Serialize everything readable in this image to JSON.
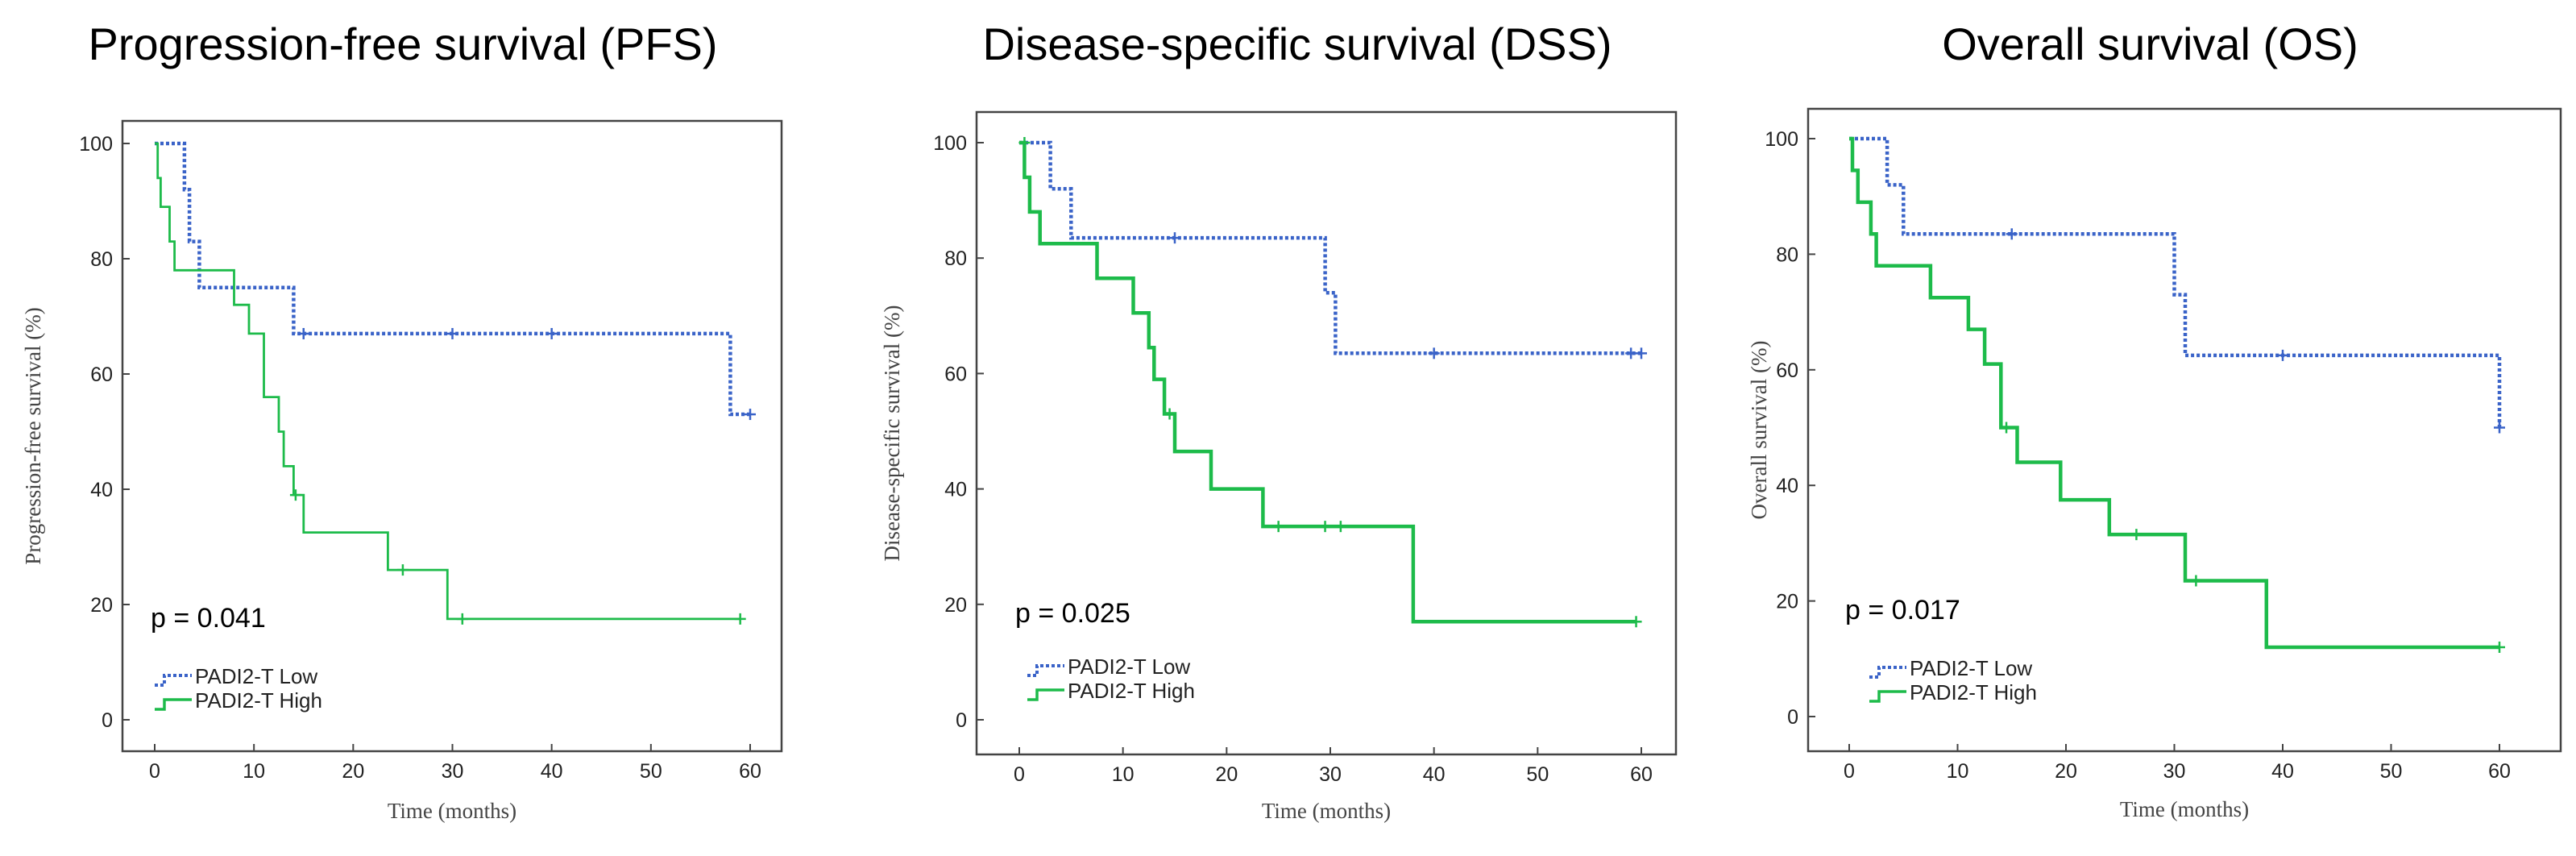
{
  "colors": {
    "low": "#3a63c8",
    "high": "#1dbb4a"
  },
  "chart_data": [
    {
      "type": "line",
      "title": "Progression-free survival (PFS)",
      "xlabel": "Time (months)",
      "ylabel": "Progression-free survival (%)",
      "xlim": [
        0,
        60
      ],
      "ylim": [
        0,
        100
      ],
      "xticks": [
        0,
        10,
        20,
        30,
        40,
        50,
        60
      ],
      "yticks": [
        0,
        20,
        40,
        60,
        80,
        100
      ],
      "pvalue": "p = 0.041",
      "series": [
        {
          "name": "PADI2-T Low",
          "style": "dotted",
          "steps": [
            [
              0,
              100
            ],
            [
              3,
              100
            ],
            [
              3,
              92
            ],
            [
              3.5,
              92
            ],
            [
              3.5,
              83
            ],
            [
              4.5,
              83
            ],
            [
              4.5,
              75
            ],
            [
              14,
              75
            ],
            [
              14,
              67
            ],
            [
              58,
              67
            ],
            [
              58,
              53
            ],
            [
              60,
              53
            ]
          ],
          "censors": [
            [
              15,
              67
            ],
            [
              30,
              67
            ],
            [
              40,
              67
            ],
            [
              60,
              53
            ]
          ]
        },
        {
          "name": "PADI2-T High",
          "style": "solid",
          "steps": [
            [
              0,
              100
            ],
            [
              0.3,
              100
            ],
            [
              0.3,
              94
            ],
            [
              0.6,
              94
            ],
            [
              0.6,
              89
            ],
            [
              1.5,
              89
            ],
            [
              1.5,
              83
            ],
            [
              2,
              83
            ],
            [
              2,
              78
            ],
            [
              8,
              78
            ],
            [
              8,
              72
            ],
            [
              9.5,
              72
            ],
            [
              9.5,
              67
            ],
            [
              11,
              67
            ],
            [
              11,
              56
            ],
            [
              12.5,
              56
            ],
            [
              12.5,
              50
            ],
            [
              13,
              50
            ],
            [
              13,
              44
            ],
            [
              14,
              44
            ],
            [
              14,
              39
            ],
            [
              15,
              39
            ],
            [
              15,
              32.5
            ],
            [
              23.5,
              32.5
            ],
            [
              23.5,
              26
            ],
            [
              29.5,
              26
            ],
            [
              29.5,
              17.5
            ],
            [
              59,
              17.5
            ]
          ],
          "censors": [
            [
              14.2,
              39
            ],
            [
              25,
              26
            ],
            [
              31,
              17.5
            ],
            [
              59,
              17.5
            ]
          ]
        }
      ]
    },
    {
      "type": "line",
      "title": "Disease-specific survival (DSS)",
      "xlabel": "Time (months)",
      "ylabel": "Disease-specific survival (%)",
      "xlim": [
        0,
        60
      ],
      "ylim": [
        0,
        100
      ],
      "xticks": [
        0,
        10,
        20,
        30,
        40,
        50,
        60
      ],
      "yticks": [
        0,
        20,
        40,
        60,
        80,
        100
      ],
      "pvalue": "p = 0.025",
      "series": [
        {
          "name": "PADI2-T Low",
          "style": "dotted",
          "steps": [
            [
              0,
              100
            ],
            [
              3,
              100
            ],
            [
              3,
              92
            ],
            [
              5,
              92
            ],
            [
              5,
              83.5
            ],
            [
              29.5,
              83.5
            ],
            [
              29.5,
              74
            ],
            [
              30.5,
              74
            ],
            [
              30.5,
              63.5
            ],
            [
              60,
              63.5
            ]
          ],
          "censors": [
            [
              15,
              83.5
            ],
            [
              40,
              63.5
            ],
            [
              59,
              63.5
            ],
            [
              60,
              63.5
            ]
          ]
        },
        {
          "name": "PADI2-T High",
          "style": "solid",
          "steps": [
            [
              0,
              100
            ],
            [
              0.5,
              100
            ],
            [
              0.5,
              94
            ],
            [
              1,
              94
            ],
            [
              1,
              88
            ],
            [
              2,
              88
            ],
            [
              2,
              82.5
            ],
            [
              7.5,
              82.5
            ],
            [
              7.5,
              76.5
            ],
            [
              11,
              76.5
            ],
            [
              11,
              70.5
            ],
            [
              12.5,
              70.5
            ],
            [
              12.5,
              64.5
            ],
            [
              13,
              64.5
            ],
            [
              13,
              59
            ],
            [
              14,
              59
            ],
            [
              14,
              53
            ],
            [
              15,
              53
            ],
            [
              15,
              46.5
            ],
            [
              18.5,
              46.5
            ],
            [
              18.5,
              40
            ],
            [
              23.5,
              40
            ],
            [
              23.5,
              33.5
            ],
            [
              38,
              33.5
            ],
            [
              38,
              17
            ],
            [
              59.5,
              17
            ]
          ],
          "censors": [
            [
              0.5,
              100
            ],
            [
              14.5,
              53
            ],
            [
              25,
              33.5
            ],
            [
              29.5,
              33.5
            ],
            [
              31,
              33.5
            ],
            [
              59.5,
              17
            ]
          ]
        }
      ]
    },
    {
      "type": "line",
      "title": "Overall survival (OS)",
      "xlabel": "Time (months)",
      "ylabel": "Overall survival (%)",
      "xlim": [
        0,
        60
      ],
      "ylim": [
        0,
        100
      ],
      "xticks": [
        0,
        10,
        20,
        30,
        40,
        50,
        60
      ],
      "yticks": [
        0,
        20,
        40,
        60,
        80,
        100
      ],
      "pvalue": "p = 0.017",
      "series": [
        {
          "name": "PADI2-T Low",
          "style": "dotted",
          "steps": [
            [
              0,
              100
            ],
            [
              3.5,
              100
            ],
            [
              3.5,
              92
            ],
            [
              5,
              92
            ],
            [
              5,
              83.5
            ],
            [
              30,
              83.5
            ],
            [
              30,
              73
            ],
            [
              31,
              73
            ],
            [
              31,
              62.5
            ],
            [
              60,
              62.5
            ],
            [
              60,
              50
            ]
          ],
          "censors": [
            [
              15,
              83.5
            ],
            [
              40,
              62.5
            ],
            [
              60,
              50
            ]
          ]
        },
        {
          "name": "PADI2-T High",
          "style": "solid",
          "steps": [
            [
              0,
              100
            ],
            [
              0.3,
              100
            ],
            [
              0.3,
              94.5
            ],
            [
              0.8,
              94.5
            ],
            [
              0.8,
              89
            ],
            [
              2,
              89
            ],
            [
              2,
              83.5
            ],
            [
              2.5,
              83.5
            ],
            [
              2.5,
              78
            ],
            [
              7.5,
              78
            ],
            [
              7.5,
              72.5
            ],
            [
              11,
              72.5
            ],
            [
              11,
              67
            ],
            [
              12.5,
              67
            ],
            [
              12.5,
              61
            ],
            [
              14,
              61
            ],
            [
              14,
              50
            ],
            [
              15.5,
              50
            ],
            [
              15.5,
              44
            ],
            [
              19.5,
              44
            ],
            [
              19.5,
              37.5
            ],
            [
              24,
              37.5
            ],
            [
              24,
              31.5
            ],
            [
              31,
              31.5
            ],
            [
              31,
              23.5
            ],
            [
              38.5,
              23.5
            ],
            [
              38.5,
              12
            ],
            [
              60,
              12
            ]
          ],
          "censors": [
            [
              14.5,
              50
            ],
            [
              26.5,
              31.5
            ],
            [
              32,
              23.5
            ],
            [
              60,
              12
            ]
          ]
        }
      ]
    }
  ]
}
